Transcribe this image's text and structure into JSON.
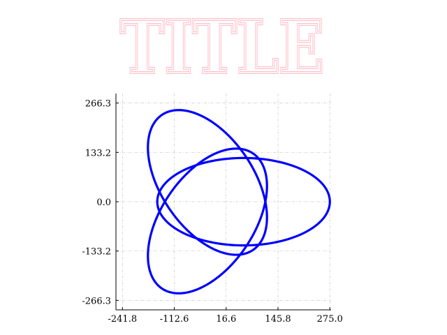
{
  "chart_data": {
    "type": "line",
    "title": "TITLE",
    "title_color": "#ffc0cb",
    "xlabel": "",
    "ylabel": "",
    "xlim": [
      -258,
      278
    ],
    "ylim": [
      -292,
      292
    ],
    "xticks": [
      -241.8,
      -112.6,
      16.6,
      145.8,
      275.0
    ],
    "xtick_labels": [
      "-241.8",
      "-112.6",
      "16.6",
      "145.8",
      "275.0"
    ],
    "yticks": [
      -266.3,
      -133.2,
      0.0,
      133.2,
      266.3
    ],
    "ytick_labels": [
      "-266.3",
      "-133.2",
      "0.0",
      "133.2",
      "266.3"
    ],
    "grid": true,
    "legend": "none",
    "series": [
      {
        "color": "#0000ff",
        "shape": "three overlapping ellipses (trefoil), each with semi-axes 215 and 118, centered at radius 60 from origin, rotated 120 degrees apart",
        "ellipses": [
          {
            "cx": 60,
            "cy": 0,
            "a": 215,
            "b": 118,
            "angle_deg": 0
          },
          {
            "cx": -30,
            "cy": 52,
            "a": 215,
            "b": 118,
            "angle_deg": 120
          },
          {
            "cx": -30,
            "cy": -52,
            "a": 215,
            "b": 118,
            "angle_deg": 240
          }
        ]
      }
    ]
  }
}
